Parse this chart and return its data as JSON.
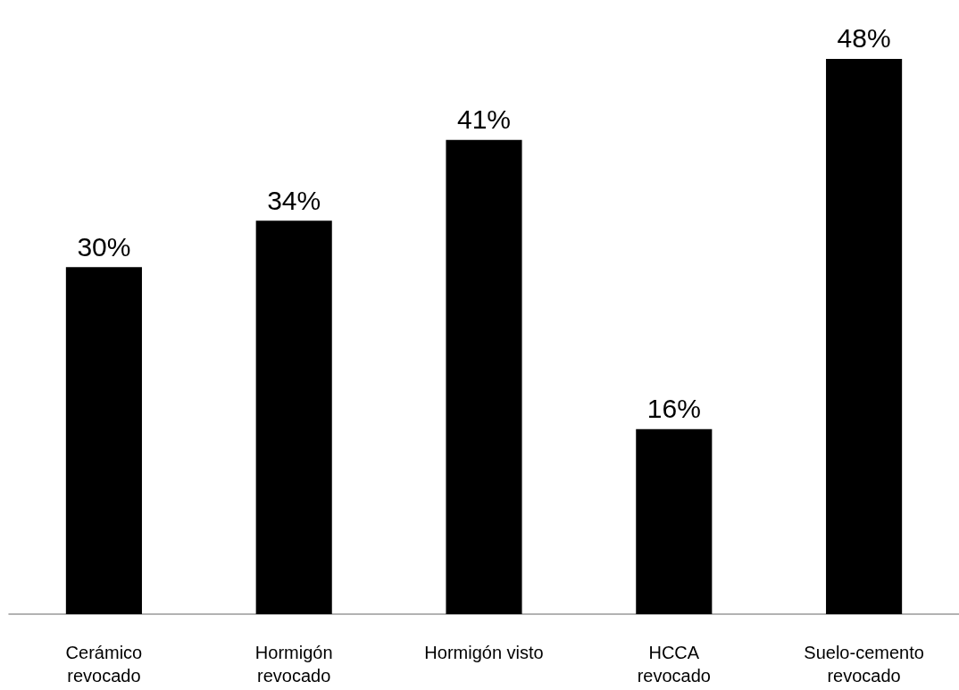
{
  "chart_data": {
    "type": "bar",
    "categories": [
      "Cerámico\nrevocado",
      "Hormigón\nrevocado",
      "Hormigón visto",
      "HCCA\nrevocado",
      "Suelo-cemento\nrevocado"
    ],
    "values": [
      30,
      34,
      41,
      16,
      48
    ],
    "value_labels": [
      "30%",
      "34%",
      "41%",
      "16%",
      "48%"
    ],
    "color": "#000000"
  }
}
